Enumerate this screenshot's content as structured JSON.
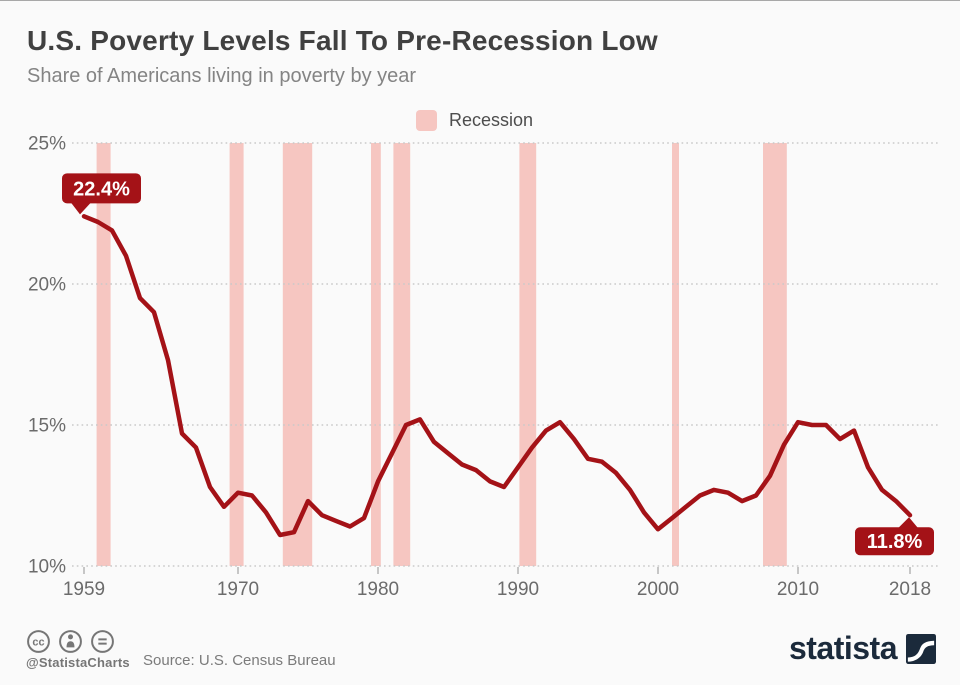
{
  "header": {
    "title": "U.S. Poverty Levels Fall To Pre-Recession Low",
    "subtitle": "Share of Americans living in poverty by year"
  },
  "legend": {
    "label": "Recession",
    "swatch_color": "#f6c6c1"
  },
  "chart_data": {
    "type": "line",
    "series_name": "Share of Americans living in poverty",
    "x": [
      1959,
      1960,
      1961,
      1962,
      1963,
      1964,
      1965,
      1966,
      1967,
      1968,
      1969,
      1970,
      1971,
      1972,
      1973,
      1974,
      1975,
      1976,
      1977,
      1978,
      1979,
      1980,
      1981,
      1982,
      1983,
      1984,
      1985,
      1986,
      1987,
      1988,
      1989,
      1990,
      1991,
      1992,
      1993,
      1994,
      1995,
      1996,
      1997,
      1998,
      1999,
      2000,
      2001,
      2002,
      2003,
      2004,
      2005,
      2006,
      2007,
      2008,
      2009,
      2010,
      2011,
      2012,
      2013,
      2014,
      2015,
      2016,
      2017,
      2018
    ],
    "values": [
      22.4,
      22.2,
      21.9,
      21.0,
      19.5,
      19.0,
      17.3,
      14.7,
      14.2,
      12.8,
      12.1,
      12.6,
      12.5,
      11.9,
      11.1,
      11.2,
      12.3,
      11.8,
      11.6,
      11.4,
      11.7,
      13.0,
      14.0,
      15.0,
      15.2,
      14.4,
      14.0,
      13.6,
      13.4,
      13.0,
      12.8,
      13.5,
      14.2,
      14.8,
      15.1,
      14.5,
      13.8,
      13.7,
      13.3,
      12.7,
      11.9,
      11.3,
      11.7,
      12.1,
      12.5,
      12.7,
      12.6,
      12.3,
      12.5,
      13.2,
      14.3,
      15.1,
      15.0,
      15.0,
      14.5,
      14.8,
      13.5,
      12.7,
      12.3,
      11.8
    ],
    "xlim": [
      1959,
      2018
    ],
    "ylim": [
      10,
      25
    ],
    "y_ticks": [
      {
        "value": 25,
        "label": "25%"
      },
      {
        "value": 20,
        "label": "20%"
      },
      {
        "value": 15,
        "label": "15%"
      },
      {
        "value": 10,
        "label": "10%"
      }
    ],
    "x_ticks": [
      {
        "value": 1959,
        "label": "1959"
      },
      {
        "value": 1970,
        "label": "1970"
      },
      {
        "value": 1980,
        "label": "1980"
      },
      {
        "value": 1990,
        "label": "1990"
      },
      {
        "value": 2000,
        "label": "2000"
      },
      {
        "value": 2010,
        "label": "2010"
      },
      {
        "value": 2018,
        "label": "2018"
      }
    ],
    "grid": "horizontal dotted",
    "legend_position": "top center",
    "line_color": "#a41217",
    "recession_color": "#f6c6c1",
    "recessions": [
      [
        1959.9,
        1960.9
      ],
      [
        1969.4,
        1970.4
      ],
      [
        1973.2,
        1975.3
      ],
      [
        1979.5,
        1980.2
      ],
      [
        1981.1,
        1982.3
      ],
      [
        1990.1,
        1991.3
      ],
      [
        2001.0,
        2001.5
      ],
      [
        2007.5,
        2009.2
      ]
    ],
    "annotations": {
      "start": {
        "year": 1959,
        "value": 22.4,
        "label": "22.4%"
      },
      "end": {
        "year": 2018,
        "value": 11.8,
        "label": "11.8%"
      }
    }
  },
  "footer": {
    "handle": "@StatistaCharts",
    "source": "Source: U.S. Census Bureau",
    "brand": "statista",
    "license_icons": [
      "cc-icon",
      "attribution-icon",
      "equals-icon"
    ]
  },
  "colors": {
    "background": "#fafafa",
    "title": "#404040",
    "subtitle": "#848484",
    "axis_text": "#6b6b6b",
    "grid": "#c9c9c9",
    "badge": "#a41217",
    "footer_gray": "#767676",
    "brand_navy": "#1b2a3b"
  }
}
